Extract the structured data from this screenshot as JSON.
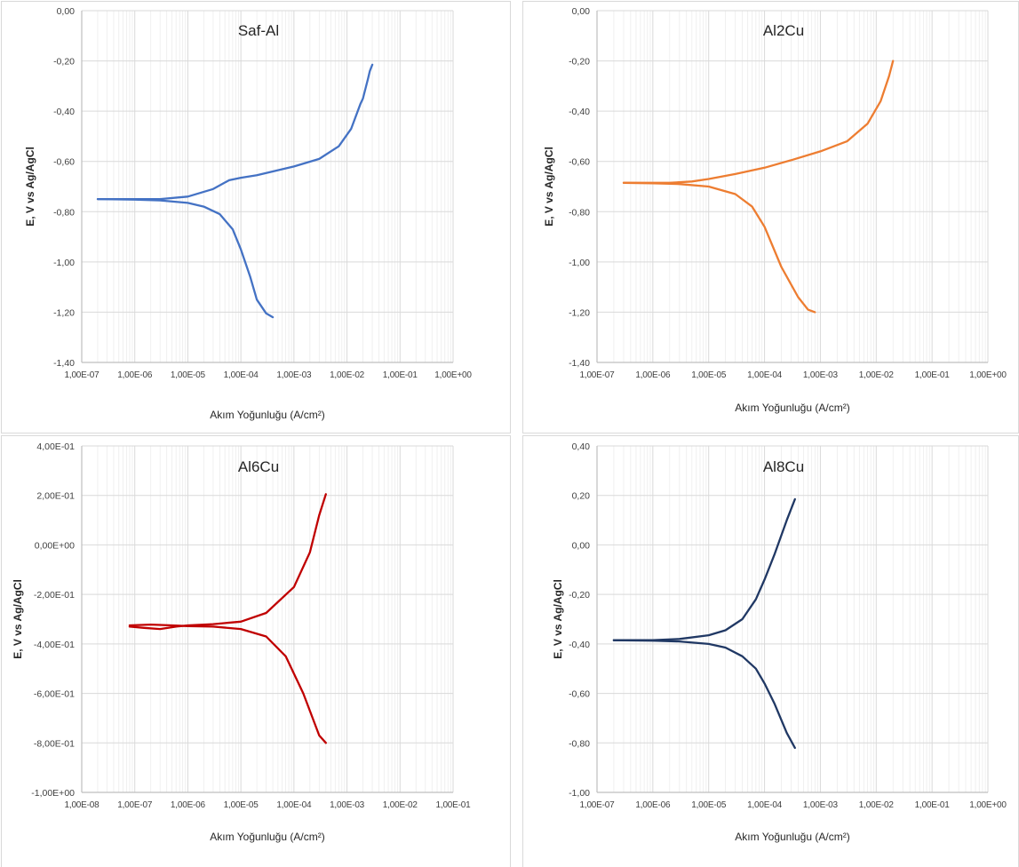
{
  "chart_data": [
    {
      "type": "line",
      "title": "Saf-Al",
      "xlabel": "Akım Yoğunluğu (A/cm²)",
      "ylabel": "E, V vs Ag/AgCl",
      "xscale": "log",
      "xlim": [
        1e-07,
        1
      ],
      "ylim": [
        -1.4,
        0
      ],
      "xtick_labels": [
        "1,00E-07",
        "1,00E-06",
        "1,00E-05",
        "1,00E-04",
        "1,00E-03",
        "1,00E-02",
        "1,00E-01",
        "1,00E+00"
      ],
      "ytick_labels": [
        "0,00",
        "-0,20",
        "-0,40",
        "-0,60",
        "-0,80",
        "-1,00",
        "-1,20",
        "-1,40"
      ],
      "ytick_values": [
        0,
        -0.2,
        -0.4,
        -0.6,
        -0.8,
        -1.0,
        -1.2,
        -1.4
      ],
      "grid": true,
      "color": "#4472C4",
      "series": [
        {
          "x": [
            2e-07,
            5e-07,
            1e-06,
            3e-06,
            1e-05,
            3e-05,
            6e-05,
            0.0001,
            0.0002,
            0.0005,
            0.001,
            0.003,
            0.007,
            0.012,
            0.018,
            0.02,
            0.025,
            0.027,
            0.03
          ],
          "y": [
            -0.75,
            -0.75,
            -0.75,
            -0.75,
            -0.74,
            -0.71,
            -0.675,
            -0.665,
            -0.655,
            -0.635,
            -0.62,
            -0.59,
            -0.54,
            -0.47,
            -0.37,
            -0.35,
            -0.27,
            -0.24,
            -0.215
          ]
        },
        {
          "x": [
            2e-07,
            1e-06,
            3e-06,
            1e-05,
            2e-05,
            4e-05,
            7e-05,
            0.0001,
            0.00015,
            0.0002,
            0.0003,
            0.0004
          ],
          "y": [
            -0.75,
            -0.752,
            -0.755,
            -0.765,
            -0.78,
            -0.81,
            -0.87,
            -0.95,
            -1.06,
            -1.15,
            -1.205,
            -1.22
          ]
        }
      ]
    },
    {
      "type": "line",
      "title": "Al2Cu",
      "xlabel": "Akım Yoğunluğu (A/cm²)",
      "ylabel": "E, V vs Ag/AgCl",
      "xscale": "log",
      "xlim": [
        1e-07,
        1
      ],
      "ylim": [
        -1.4,
        0
      ],
      "xtick_labels": [
        "1,00E-07",
        "1,00E-06",
        "1,00E-05",
        "1,00E-04",
        "1,00E-03",
        "1,00E-02",
        "1,00E-01",
        "1,00E+00"
      ],
      "ytick_labels": [
        "0,00",
        "-0,20",
        "-0,40",
        "-0,60",
        "-0,80",
        "-1,00",
        "-1,20",
        "-1,40"
      ],
      "ytick_values": [
        0,
        -0.2,
        -0.4,
        -0.6,
        -0.8,
        -1.0,
        -1.2,
        -1.4
      ],
      "grid": true,
      "color": "#ED7D31",
      "series": [
        {
          "x": [
            3e-07,
            1e-06,
            2e-06,
            5e-06,
            1e-05,
            3e-05,
            0.0001,
            0.0003,
            0.001,
            0.003,
            0.007,
            0.012,
            0.017,
            0.02
          ],
          "y": [
            -0.685,
            -0.685,
            -0.685,
            -0.68,
            -0.67,
            -0.65,
            -0.625,
            -0.595,
            -0.56,
            -0.52,
            -0.45,
            -0.36,
            -0.26,
            -0.2
          ]
        },
        {
          "x": [
            3e-07,
            1e-06,
            3e-06,
            1e-05,
            3e-05,
            6e-05,
            0.0001,
            0.0002,
            0.0004,
            0.0006,
            0.0008
          ],
          "y": [
            -0.685,
            -0.687,
            -0.69,
            -0.7,
            -0.73,
            -0.78,
            -0.86,
            -1.02,
            -1.14,
            -1.19,
            -1.2
          ]
        }
      ]
    },
    {
      "type": "line",
      "title": "Al6Cu",
      "xlabel": "Akım Yoğunluğu (A/cm²)",
      "ylabel": "E, V vs Ag/AgCl",
      "xscale": "log",
      "xlim": [
        1e-08,
        0.1
      ],
      "ylim": [
        -1.0,
        0.4
      ],
      "xtick_labels": [
        "1,00E-08",
        "1,00E-07",
        "1,00E-06",
        "1,00E-05",
        "1,00E-04",
        "1,00E-03",
        "1,00E-02",
        "1,00E-01"
      ],
      "ytick_labels": [
        "4,00E-01",
        "2,00E-01",
        "0,00E+00",
        "-2,00E-01",
        "-4,00E-01",
        "-6,00E-01",
        "-8,00E-01",
        "-1,00E+00"
      ],
      "ytick_values": [
        0.4,
        0.2,
        0,
        -0.2,
        -0.4,
        -0.6,
        -0.8,
        -1.0
      ],
      "grid": true,
      "color": "#C00000",
      "series": [
        {
          "x": [
            8e-08,
            1.5e-07,
            3e-07,
            6e-07,
            1e-06,
            3e-06,
            1e-05,
            3e-05,
            0.0001,
            0.0002,
            0.0003,
            0.0004
          ],
          "y": [
            -0.33,
            -0.335,
            -0.34,
            -0.33,
            -0.325,
            -0.32,
            -0.31,
            -0.275,
            -0.17,
            -0.03,
            0.12,
            0.205
          ]
        },
        {
          "x": [
            8e-08,
            2e-07,
            5e-07,
            1e-06,
            3e-06,
            1e-05,
            3e-05,
            7e-05,
            0.00015,
            0.0003,
            0.0004
          ],
          "y": [
            -0.325,
            -0.322,
            -0.325,
            -0.328,
            -0.33,
            -0.34,
            -0.37,
            -0.45,
            -0.6,
            -0.77,
            -0.8
          ]
        }
      ]
    },
    {
      "type": "line",
      "title": "Al8Cu",
      "xlabel": "Akım Yoğunluğu (A/cm²)",
      "ylabel": "E, V vs Ag/AgCl",
      "xscale": "log",
      "xlim": [
        1e-07,
        1
      ],
      "ylim": [
        -1.0,
        0.4
      ],
      "xtick_labels": [
        "1,00E-07",
        "1,00E-06",
        "1,00E-05",
        "1,00E-04",
        "1,00E-03",
        "1,00E-02",
        "1,00E-01",
        "1,00E+00"
      ],
      "ytick_labels": [
        "0,40",
        "0,20",
        "0,00",
        "-0,20",
        "-0,40",
        "-0,60",
        "-0,80",
        "-1,00"
      ],
      "ytick_values": [
        0.4,
        0.2,
        0,
        -0.2,
        -0.4,
        -0.6,
        -0.8,
        -1.0
      ],
      "grid": true,
      "color": "#203864",
      "series": [
        {
          "x": [
            2e-07,
            1e-06,
            3e-06,
            1e-05,
            2e-05,
            4e-05,
            7e-05,
            0.0001,
            0.00015,
            0.00025,
            0.00035
          ],
          "y": [
            -0.385,
            -0.385,
            -0.38,
            -0.365,
            -0.345,
            -0.3,
            -0.22,
            -0.14,
            -0.04,
            0.1,
            0.185
          ]
        },
        {
          "x": [
            2e-07,
            1e-06,
            3e-06,
            1e-05,
            2e-05,
            4e-05,
            7e-05,
            0.0001,
            0.00015,
            0.00025,
            0.00035
          ],
          "y": [
            -0.385,
            -0.387,
            -0.39,
            -0.4,
            -0.415,
            -0.45,
            -0.5,
            -0.56,
            -0.64,
            -0.76,
            -0.82
          ]
        }
      ]
    }
  ]
}
